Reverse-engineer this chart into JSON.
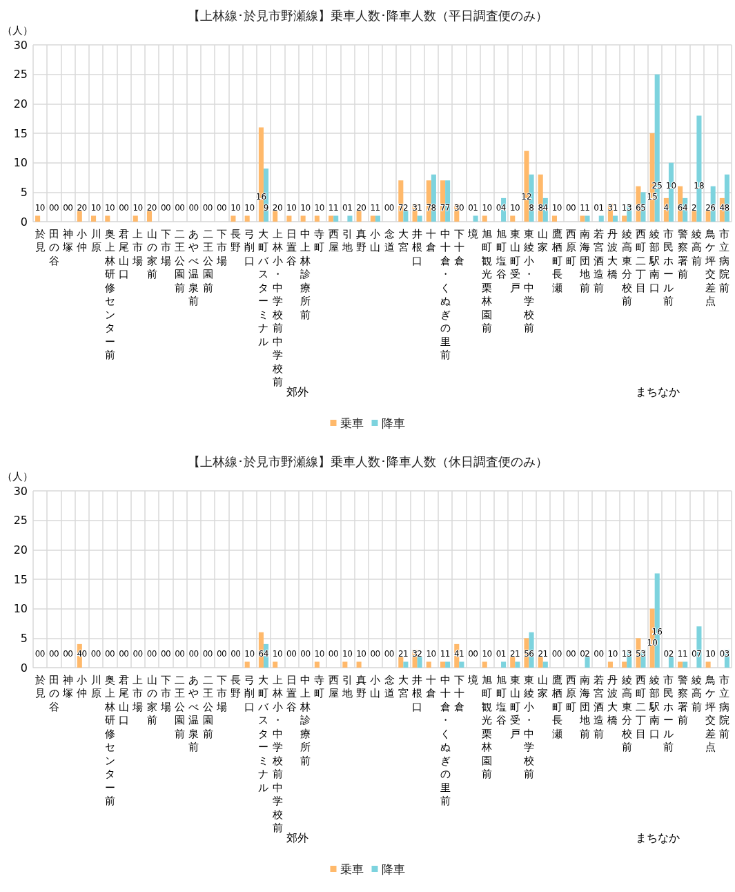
{
  "chart_data": [
    {
      "type": "bar",
      "title": "【上林線･於見市野瀬線】乗車人数･降車人数（平日調査便のみ）",
      "ylabel": "（人）",
      "categories": [
        "於見",
        "田の谷",
        "神塚",
        "小仲",
        "川原",
        "奥上林研修センター前",
        "君尾山口",
        "上市場",
        "山の家前",
        "下市場",
        "二王公園前",
        "あやべ温泉前",
        "二王公園前",
        "下市場",
        "長野",
        "弓削口",
        "大町バスターミナル",
        "上林小・中学校前中学校前",
        "日置谷",
        "中上林診療所前",
        "寺町",
        "西屋",
        "引地",
        "真野",
        "小山",
        "念道",
        "大宮",
        "井根口",
        "十倉",
        "中十倉・くぬぎの里前",
        "下十倉",
        "境",
        "旭町観光栗林園前",
        "旭町塩谷",
        "東山町受戸",
        "東綾小・中学校前",
        "山家",
        "鷹栖町長瀬",
        "西原町",
        "南海団地前",
        "若宮酒造前",
        "丹波大橋",
        "綾高東分校前",
        "西町二丁目",
        "綾部駅南口",
        "市民ホール前",
        "警察署前",
        "綾高前",
        "鳥ケ坪交差点",
        "市立病院前"
      ],
      "series": [
        {
          "name": "乗車",
          "color": "#ffb96b",
          "values": [
            1,
            0,
            0,
            2,
            1,
            1,
            0,
            1,
            2,
            0,
            0,
            0,
            0,
            0,
            1,
            1,
            16,
            2,
            1,
            1,
            1,
            1,
            0,
            2,
            1,
            0,
            7,
            3,
            7,
            7,
            3,
            0,
            1,
            0,
            1,
            12,
            8,
            1,
            0,
            1,
            0,
            3,
            1,
            6,
            15,
            4,
            6,
            2,
            2,
            4
          ]
        },
        {
          "name": "降車",
          "color": "#7dd3de",
          "values": [
            0,
            0,
            0,
            0,
            0,
            0,
            0,
            0,
            0,
            0,
            0,
            0,
            0,
            0,
            0,
            0,
            9,
            0,
            0,
            0,
            0,
            1,
            1,
            0,
            1,
            0,
            2,
            1,
            8,
            7,
            0,
            1,
            0,
            4,
            0,
            8,
            4,
            0,
            0,
            1,
            1,
            1,
            3,
            5,
            25,
            10,
            4,
            18,
            6,
            8
          ]
        }
      ],
      "ylim": [
        0,
        30
      ],
      "yticks": [
        0,
        5,
        10,
        15,
        20,
        25,
        30
      ],
      "grid": true,
      "legend": "bottom",
      "data_labels": true,
      "annotations": [
        "郊外",
        "まちなか"
      ]
    },
    {
      "type": "bar",
      "title": "【上林線･於見市野瀬線】乗車人数･降車人数（休日調査便のみ）",
      "ylabel": "（人）",
      "categories": [
        "於見",
        "田の谷",
        "神塚",
        "小仲",
        "川原",
        "奥上林研修センター前",
        "君尾山口",
        "上市場",
        "山の家前",
        "下市場",
        "二王公園前",
        "あやべ温泉前",
        "二王公園前",
        "下市場",
        "長野",
        "弓削口",
        "大町バスターミナル",
        "上林小・中学校前中学校前",
        "日置谷",
        "中上林診療所前",
        "寺町",
        "西屋",
        "引地",
        "真野",
        "小山",
        "念道",
        "大宮",
        "井根口",
        "十倉",
        "中十倉・くぬぎの里前",
        "下十倉",
        "境",
        "旭町観光栗林園前",
        "旭町塩谷",
        "東山町受戸",
        "東綾小・中学校前",
        "山家",
        "鷹栖町長瀬",
        "西原町",
        "南海団地前",
        "若宮酒造前",
        "丹波大橋",
        "綾高東分校前",
        "西町二丁目",
        "綾部駅南口",
        "市民ホール前",
        "警察署前",
        "綾高前",
        "鳥ケ坪交差点",
        "市立病院前"
      ],
      "series": [
        {
          "name": "乗車",
          "color": "#ffb96b",
          "values": [
            0,
            0,
            0,
            4,
            0,
            0,
            0,
            0,
            0,
            0,
            0,
            0,
            0,
            0,
            0,
            1,
            6,
            1,
            0,
            0,
            1,
            0,
            1,
            1,
            0,
            0,
            2,
            3,
            1,
            1,
            4,
            0,
            1,
            0,
            2,
            5,
            2,
            0,
            0,
            0,
            0,
            1,
            1,
            5,
            10,
            0,
            1,
            0,
            1,
            0
          ]
        },
        {
          "name": "降車",
          "color": "#7dd3de",
          "values": [
            0,
            0,
            0,
            0,
            0,
            0,
            0,
            0,
            0,
            0,
            0,
            0,
            0,
            0,
            0,
            0,
            4,
            0,
            0,
            0,
            0,
            0,
            0,
            0,
            0,
            0,
            1,
            2,
            0,
            1,
            1,
            0,
            0,
            1,
            1,
            6,
            1,
            0,
            0,
            2,
            0,
            0,
            3,
            3,
            16,
            2,
            1,
            7,
            0,
            3
          ]
        }
      ],
      "ylim": [
        0,
        30
      ],
      "yticks": [
        0,
        5,
        10,
        15,
        20,
        25,
        30
      ],
      "grid": true,
      "legend": "bottom",
      "data_labels": true,
      "annotations": [
        "郊外",
        "まちなか"
      ]
    }
  ]
}
